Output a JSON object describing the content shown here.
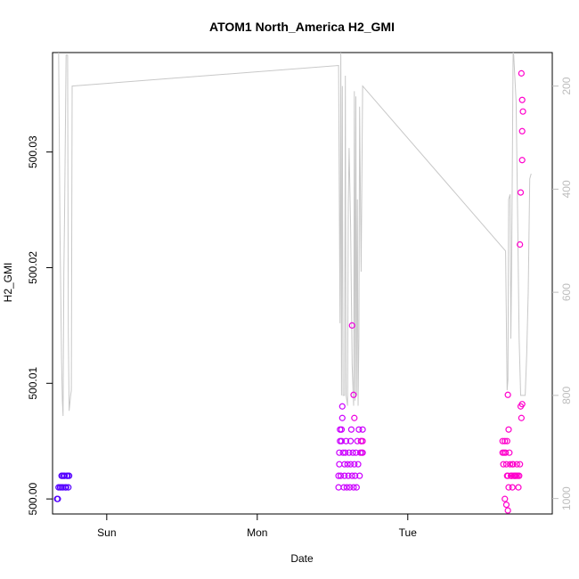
{
  "chart_data": {
    "type": "scatter",
    "title": "ATOM1 North_America H2_GMI",
    "xlabel": "Date",
    "ylabel": "H2_GMI",
    "xlim": [
      -0.36,
      2.96
    ],
    "ylim": [
      499.9987,
      500.0386
    ],
    "x_ticks": [
      {
        "value": 0,
        "label": "Sun"
      },
      {
        "value": 1,
        "label": "Mon"
      },
      {
        "value": 2,
        "label": "Tue"
      }
    ],
    "y_ticks": [
      {
        "value": 500.0,
        "label": "500.00"
      },
      {
        "value": 500.01,
        "label": "500.01"
      },
      {
        "value": 500.02,
        "label": "500.02"
      },
      {
        "value": 500.03,
        "label": "500.03"
      }
    ],
    "y2lim": [
      1030,
      135
    ],
    "y2_ticks": [
      {
        "value": 200,
        "label": "200"
      },
      {
        "value": 400,
        "label": "400"
      },
      {
        "value": 600,
        "label": "600"
      },
      {
        "value": 800,
        "label": "800"
      },
      {
        "value": 1000,
        "label": "1000"
      }
    ],
    "grid": false,
    "colors": {
      "line": "#c8c8c8",
      "points_blue": "#5500ff",
      "points_violet": "#cc00ff",
      "points_magenta": "#ff00cc",
      "right_axis": "#bdbdbd"
    },
    "series": [
      {
        "kind": "line",
        "axis": "right",
        "color": "#c8c8c8",
        "points": [
          [
            -0.32,
            130
          ],
          [
            -0.31,
            490
          ],
          [
            -0.3,
            730
          ],
          [
            -0.295,
            810
          ],
          [
            -0.29,
            840
          ],
          [
            -0.285,
            560
          ],
          [
            -0.28,
            450
          ],
          [
            -0.27,
            140
          ],
          [
            -0.26,
            140
          ],
          [
            -0.255,
            680
          ],
          [
            -0.25,
            830
          ],
          [
            -0.24,
            800
          ],
          [
            -0.235,
            790
          ],
          [
            -0.23,
            200
          ],
          [
            1.54,
            160
          ],
          [
            1.55,
            660
          ],
          [
            1.555,
            130
          ],
          [
            1.56,
            800
          ],
          [
            1.565,
            200
          ],
          [
            1.57,
            800
          ],
          [
            1.58,
            800
          ],
          [
            1.585,
            180
          ],
          [
            1.59,
            800
          ],
          [
            1.6,
            820
          ],
          [
            1.605,
            430
          ],
          [
            1.61,
            320
          ],
          [
            1.62,
            470
          ],
          [
            1.63,
            740
          ],
          [
            1.64,
            820
          ],
          [
            1.645,
            210
          ],
          [
            1.65,
            810
          ],
          [
            1.655,
            220
          ],
          [
            1.66,
            800
          ],
          [
            1.665,
            420
          ],
          [
            1.67,
            820
          ],
          [
            1.675,
            690
          ],
          [
            1.68,
            240
          ],
          [
            1.69,
            560
          ],
          [
            1.7,
            200
          ],
          [
            2.65,
            520
          ],
          [
            2.66,
            790
          ],
          [
            2.665,
            770
          ],
          [
            2.67,
            420
          ],
          [
            2.68,
            410
          ],
          [
            2.685,
            690
          ],
          [
            2.69,
            550
          ],
          [
            2.7,
            120
          ],
          [
            2.72,
            230
          ],
          [
            2.73,
            450
          ],
          [
            2.74,
            690
          ],
          [
            2.75,
            800
          ],
          [
            2.78,
            800
          ],
          [
            2.79,
            720
          ],
          [
            2.8,
            600
          ],
          [
            2.81,
            380
          ],
          [
            2.82,
            370
          ]
        ]
      },
      {
        "kind": "points",
        "color": "#5500ff",
        "points": [
          [
            -0.33,
            500.0
          ],
          [
            -0.325,
            500.0
          ],
          [
            -0.32,
            500.001
          ],
          [
            -0.31,
            500.001
          ],
          [
            -0.3,
            500.001
          ],
          [
            -0.3,
            500.002
          ],
          [
            -0.295,
            500.002
          ],
          [
            -0.29,
            500.001
          ],
          [
            -0.285,
            500.002
          ],
          [
            -0.28,
            500.002
          ],
          [
            -0.275,
            500.001
          ],
          [
            -0.27,
            500.001
          ],
          [
            -0.265,
            500.002
          ],
          [
            -0.26,
            500.002
          ],
          [
            -0.255,
            500.001
          ],
          [
            -0.25,
            500.002
          ]
        ]
      },
      {
        "kind": "points",
        "color": "#cc00ff",
        "points": [
          [
            1.54,
            500.001
          ],
          [
            1.54,
            500.002
          ],
          [
            1.545,
            500.003
          ],
          [
            1.545,
            500.004
          ],
          [
            1.55,
            500.005
          ],
          [
            1.55,
            500.006
          ],
          [
            1.555,
            500.002
          ],
          [
            1.56,
            500.005
          ],
          [
            1.56,
            500.006
          ],
          [
            1.565,
            500.007
          ],
          [
            1.565,
            500.008
          ],
          [
            1.57,
            500.004
          ],
          [
            1.575,
            500.001
          ],
          [
            1.58,
            500.002
          ],
          [
            1.58,
            500.003
          ],
          [
            1.585,
            500.004
          ],
          [
            1.59,
            500.005
          ],
          [
            1.595,
            500.001
          ],
          [
            1.6,
            500.003
          ],
          [
            1.605,
            500.002
          ],
          [
            1.61,
            500.004
          ],
          [
            1.615,
            500.001
          ],
          [
            1.62,
            500.003
          ],
          [
            1.62,
            500.005
          ],
          [
            1.625,
            500.006
          ],
          [
            1.63,
            500.002
          ],
          [
            1.635,
            500.004
          ],
          [
            1.64,
            500.001
          ],
          [
            1.645,
            500.003
          ],
          [
            1.65,
            500.002
          ],
          [
            1.655,
            500.004
          ],
          [
            1.66,
            500.001
          ],
          [
            1.665,
            500.005
          ],
          [
            1.67,
            500.003
          ],
          [
            1.675,
            500.006
          ],
          [
            1.68,
            500.002
          ],
          [
            1.685,
            500.004
          ],
          [
            1.69,
            500.005
          ],
          [
            1.7,
            500.004
          ],
          [
            1.7,
            500.006
          ]
        ]
      },
      {
        "kind": "points",
        "color": "#ee00dd",
        "points": [
          [
            1.63,
            500.015
          ],
          [
            1.64,
            500.009
          ],
          [
            1.645,
            500.007
          ],
          [
            1.69,
            500.005
          ],
          [
            1.695,
            500.004
          ],
          [
            1.7,
            500.005
          ]
        ]
      },
      {
        "kind": "points",
        "color": "#ff00cc",
        "points": [
          [
            2.63,
            500.005
          ],
          [
            2.63,
            500.004
          ],
          [
            2.635,
            500.003
          ],
          [
            2.64,
            500.004
          ],
          [
            2.645,
            500.005
          ],
          [
            2.65,
            500.004
          ],
          [
            2.655,
            500.003
          ],
          [
            2.66,
            500.002
          ],
          [
            2.66,
            500.005
          ],
          [
            2.665,
            500.002
          ],
          [
            2.67,
            500.001
          ],
          [
            2.675,
            500.004
          ],
          [
            2.68,
            500.003
          ],
          [
            2.685,
            500.002
          ],
          [
            2.69,
            500.002
          ],
          [
            2.695,
            500.001
          ],
          [
            2.7,
            500.003
          ],
          [
            2.705,
            500.002
          ],
          [
            2.71,
            500.002
          ],
          [
            2.715,
            500.002
          ],
          [
            2.72,
            500.002
          ],
          [
            2.725,
            500.003
          ],
          [
            2.73,
            500.002
          ],
          [
            2.735,
            500.001
          ],
          [
            2.74,
            500.002
          ],
          [
            2.745,
            500.003
          ],
          [
            2.75,
            500.008
          ],
          [
            2.755,
            500.007
          ],
          [
            2.645,
            500.0
          ],
          [
            2.655,
            499.9995
          ],
          [
            2.665,
            499.999
          ],
          [
            2.665,
            500.009
          ],
          [
            2.67,
            500.006
          ],
          [
            2.69,
            500.002
          ],
          [
            2.695,
            500.003
          ]
        ]
      },
      {
        "kind": "points",
        "color": "#ff00cc",
        "points": [
          [
            2.745,
            500.022
          ],
          [
            2.755,
            500.0368
          ],
          [
            2.76,
            500.0345
          ],
          [
            2.765,
            500.0335
          ],
          [
            2.76,
            500.0318
          ],
          [
            2.76,
            500.0293
          ],
          [
            2.75,
            500.0265
          ],
          [
            2.76,
            500.0082
          ]
        ]
      }
    ]
  }
}
